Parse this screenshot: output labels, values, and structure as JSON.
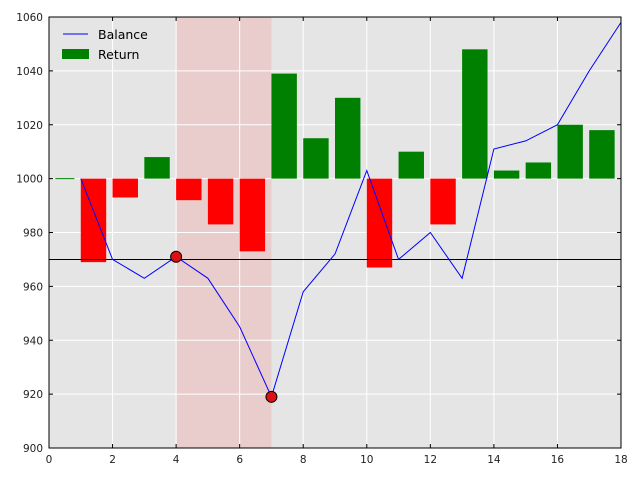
{
  "chart_data": {
    "type": "bar",
    "title": "",
    "xlabel": "",
    "ylabel": "",
    "xlim": [
      0,
      18
    ],
    "ylim": [
      900,
      1060
    ],
    "x_ticks": [
      "0",
      "2",
      "4",
      "6",
      "8",
      "10",
      "12",
      "14",
      "16",
      "18"
    ],
    "y_ticks": [
      "900",
      "920",
      "940",
      "960",
      "980",
      "1000",
      "1020",
      "1040",
      "1060"
    ],
    "grid": true,
    "legend_position": "top-left",
    "background_color": "#e5e5e5",
    "baseline": 1000,
    "reference_line": 970,
    "shaded_region": {
      "from": 4,
      "to": 7,
      "color": "#f0a0a0"
    },
    "series": [
      {
        "name": "Balance",
        "kind": "line",
        "color": "#0000ff",
        "x": [
          1,
          2,
          3,
          4,
          5,
          6,
          7,
          8,
          9,
          10,
          11,
          12,
          13,
          14,
          15,
          16,
          17,
          18
        ],
        "values": [
          1000,
          970,
          963,
          971,
          963,
          945,
          919,
          958,
          972,
          1003,
          970,
          980,
          963,
          1011,
          1014,
          1020,
          1040,
          1058
        ]
      },
      {
        "name": "Return",
        "kind": "bar",
        "color": "#008000",
        "negative_color": "#ff0000",
        "x": [
          1,
          2,
          3,
          4,
          5,
          6,
          7,
          8,
          9,
          10,
          11,
          12,
          13,
          14,
          15,
          16,
          17
        ],
        "values": [
          -31,
          -7,
          8,
          -8,
          -17,
          -27,
          39,
          15,
          30,
          -33,
          10,
          -17,
          48,
          3,
          6,
          20,
          18
        ]
      }
    ],
    "markers": [
      {
        "x": 4,
        "y": 971,
        "color": "#dd1111"
      },
      {
        "x": 7,
        "y": 919,
        "color": "#dd1111"
      }
    ]
  }
}
